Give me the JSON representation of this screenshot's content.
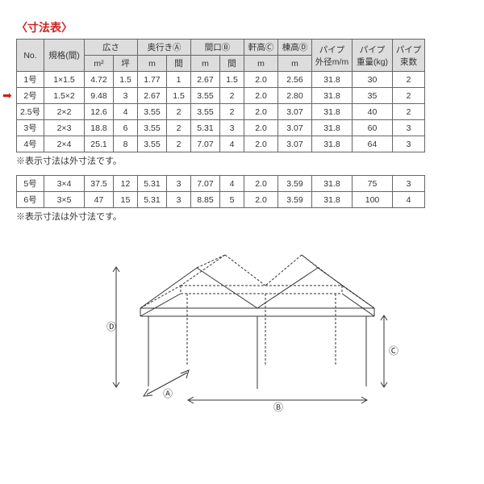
{
  "title": "〈寸法表〉",
  "note": "※表示寸法は外寸法です。",
  "headers": {
    "no": "No.",
    "spec": "規格(間)",
    "area": "広さ",
    "area_m2": "m²",
    "area_tsubo": "坪",
    "depth": "奥行きⒶ",
    "depth_m": "m",
    "depth_ken": "間",
    "width": "間口Ⓑ",
    "width_m": "m",
    "width_ken": "間",
    "eave": "軒高Ⓒ",
    "eave_m": "m",
    "ridge": "棟高Ⓓ",
    "ridge_m": "m",
    "pipe_d": "パイプ\n外径m/m",
    "pipe_w": "パイプ\n重量(kg)",
    "pipe_b": "パイプ\n束数"
  },
  "rows1": [
    {
      "no": "1号",
      "spec": "1×1.5",
      "m2": "4.72",
      "tsubo": "1.5",
      "dm": "1.77",
      "dk": "1",
      "wm": "2.67",
      "wk": "1.5",
      "eave": "2.0",
      "ridge": "2.56",
      "pipeD": "31.8",
      "pipeW": "30",
      "pipeB": "2"
    },
    {
      "no": "2号",
      "spec": "1.5×2",
      "m2": "9.48",
      "tsubo": "3",
      "dm": "2.67",
      "dk": "1.5",
      "wm": "3.55",
      "wk": "2",
      "eave": "2.0",
      "ridge": "2.80",
      "pipeD": "31.8",
      "pipeW": "35",
      "pipeB": "2"
    },
    {
      "no": "2.5号",
      "spec": "2×2",
      "m2": "12.6",
      "tsubo": "4",
      "dm": "3.55",
      "dk": "2",
      "wm": "3.55",
      "wk": "2",
      "eave": "2.0",
      "ridge": "3.07",
      "pipeD": "31.8",
      "pipeW": "40",
      "pipeB": "2"
    },
    {
      "no": "3号",
      "spec": "2×3",
      "m2": "18.8",
      "tsubo": "6",
      "dm": "3.55",
      "dk": "2",
      "wm": "5.31",
      "wk": "3",
      "eave": "2.0",
      "ridge": "3.07",
      "pipeD": "31.8",
      "pipeW": "60",
      "pipeB": "3"
    },
    {
      "no": "4号",
      "spec": "2×4",
      "m2": "25.1",
      "tsubo": "8",
      "dm": "3.55",
      "dk": "2",
      "wm": "7.07",
      "wk": "4",
      "eave": "2.0",
      "ridge": "3.07",
      "pipeD": "31.8",
      "pipeW": "64",
      "pipeB": "3"
    }
  ],
  "rows2": [
    {
      "no": "5号",
      "spec": "3×4",
      "m2": "37.5",
      "tsubo": "12",
      "dm": "5.31",
      "dk": "3",
      "wm": "7.07",
      "wk": "4",
      "eave": "2.0",
      "ridge": "3.59",
      "pipeD": "31.8",
      "pipeW": "75",
      "pipeB": "3"
    },
    {
      "no": "6号",
      "spec": "3×5",
      "m2": "47",
      "tsubo": "15",
      "dm": "5.31",
      "dk": "3",
      "wm": "8.85",
      "wk": "5",
      "eave": "2.0",
      "ridge": "3.59",
      "pipeD": "31.8",
      "pipeW": "100",
      "pipeB": "4"
    }
  ],
  "cols": {
    "no": 34,
    "spec": 50,
    "m2": 36,
    "tsubo": 30,
    "dm": 36,
    "dk": 30,
    "wm": 36,
    "wk": 30,
    "eave": 42,
    "ridge": 42,
    "pipeD": 50,
    "pipeW": 50,
    "pipeB": 40
  }
}
